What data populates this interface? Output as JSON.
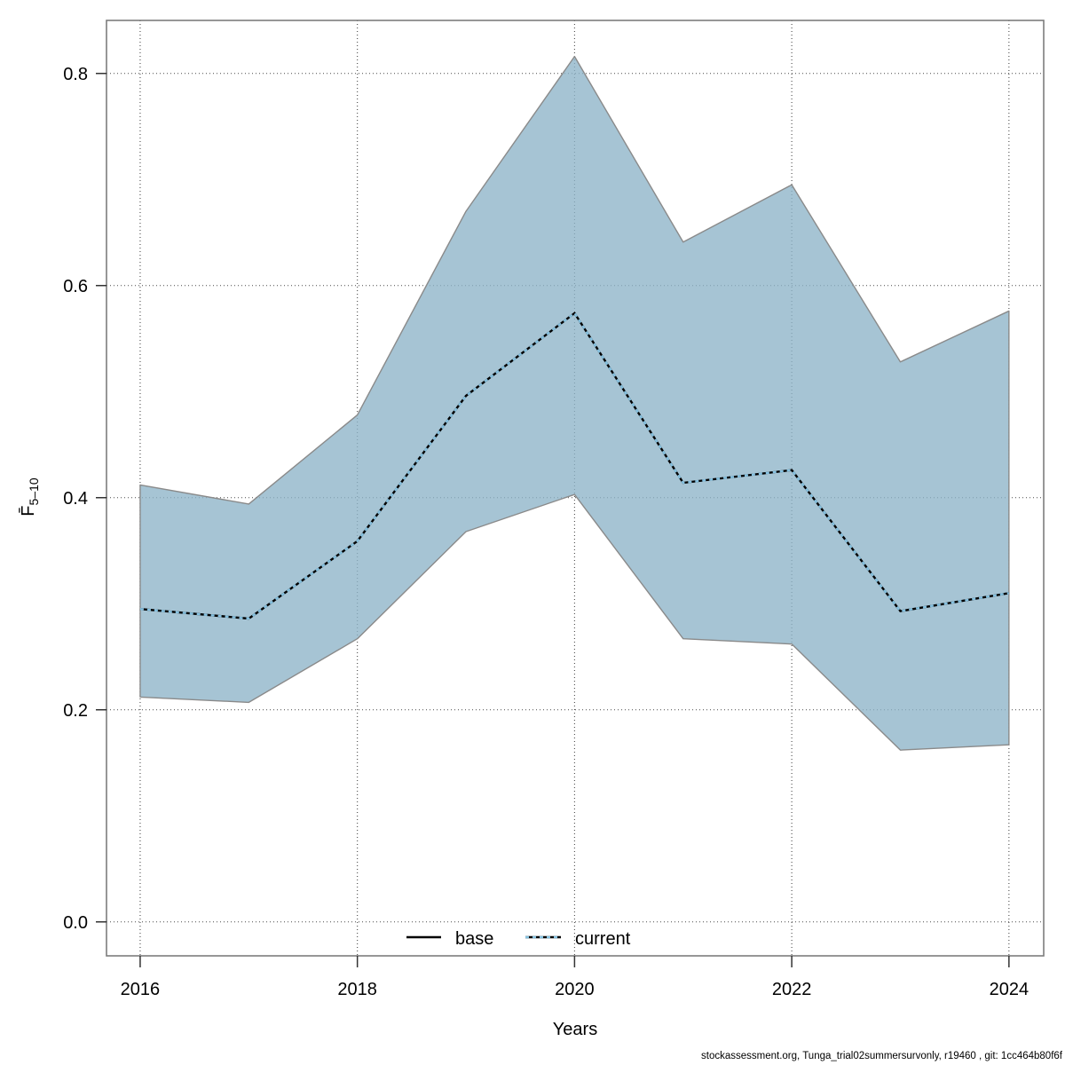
{
  "footer": "stockassessment.org, Tunga_trial02summersurvonly, r19460 , git: 1cc464b80f6f",
  "chart_data": {
    "type": "area",
    "title": "",
    "xlabel": "Years",
    "ylabel_main": "F̄",
    "ylabel_sub": "5–10",
    "x": [
      2016,
      2017,
      2018,
      2019,
      2020,
      2021,
      2022,
      2023,
      2024
    ],
    "series": [
      {
        "name": "current median",
        "values": [
          0.295,
          0.286,
          0.359,
          0.496,
          0.574,
          0.414,
          0.426,
          0.293,
          0.31
        ]
      },
      {
        "name": "confidence upper",
        "values": [
          0.412,
          0.394,
          0.478,
          0.67,
          0.816,
          0.641,
          0.695,
          0.528,
          0.576
        ]
      },
      {
        "name": "confidence lower",
        "values": [
          0.212,
          0.207,
          0.267,
          0.368,
          0.403,
          0.267,
          0.262,
          0.162,
          0.167
        ]
      }
    ],
    "xlim": [
      2015.69,
      2024.32
    ],
    "ylim": [
      -0.032,
      0.85
    ],
    "xticks": [
      {
        "value": 2016,
        "label": "2016"
      },
      {
        "value": 2018,
        "label": "2018"
      },
      {
        "value": 2020,
        "label": "2020"
      },
      {
        "value": 2022,
        "label": "2022"
      },
      {
        "value": 2024,
        "label": "2024"
      }
    ],
    "yticks": [
      {
        "value": 0.0,
        "label": "0.0"
      },
      {
        "value": 0.2,
        "label": "0.2"
      },
      {
        "value": 0.4,
        "label": "0.4"
      },
      {
        "value": 0.6,
        "label": "0.6"
      },
      {
        "value": 0.8,
        "label": "0.8"
      }
    ],
    "grid": true,
    "legend_position": "bottom",
    "legend": [
      {
        "label": "base",
        "style": "solid-black"
      },
      {
        "label": "current",
        "style": "dashed-blue"
      }
    ],
    "colors": {
      "band_fill": "#8db3c8",
      "band_edge": "#8a8a8a",
      "line_blue": "#85c1e0",
      "line_black": "#000000",
      "grid": "#2a2a2a",
      "box": "#7d7d7d",
      "tick": "#333333",
      "text": "#000000"
    }
  }
}
